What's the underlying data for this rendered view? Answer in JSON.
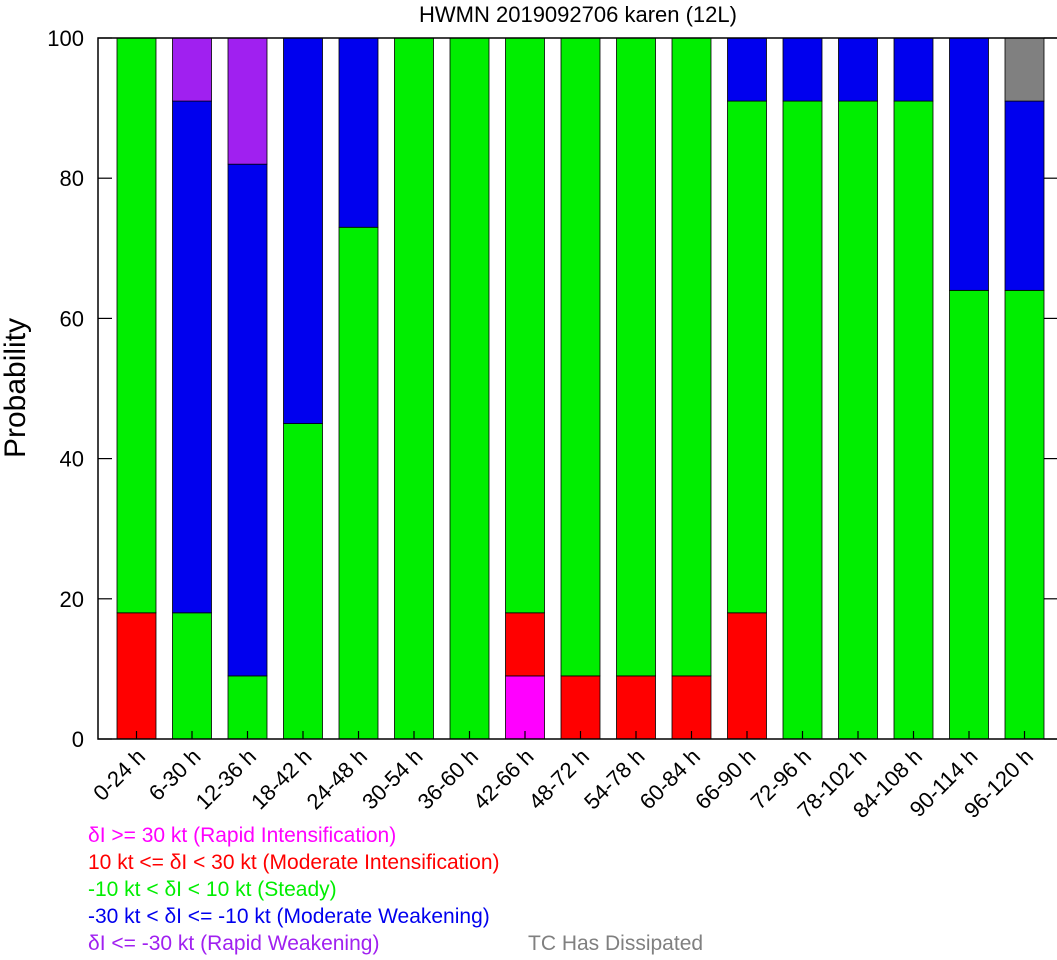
{
  "chart_data": {
    "type": "bar",
    "stacked": true,
    "title": "HWMN 2019092706 karen (12L)",
    "xlabel": "",
    "ylabel": "Probability",
    "ylim": [
      0,
      100
    ],
    "yticks": [
      "0",
      "20",
      "40",
      "60",
      "80",
      "100"
    ],
    "grid": false,
    "legend_position": "bottom-left",
    "categories": [
      "0-24 h",
      "6-30 h",
      "12-36 h",
      "18-42 h",
      "24-48 h",
      "30-54 h",
      "36-60 h",
      "42-66 h",
      "48-72 h",
      "54-78 h",
      "60-84 h",
      "66-90 h",
      "72-96 h",
      "78-102 h",
      "84-108 h",
      "90-114 h",
      "96-120 h"
    ],
    "series": [
      {
        "name": "δI >= 30 kt (Rapid Intensification)",
        "color": "#ff00ff",
        "values": [
          0,
          0,
          0,
          0,
          0,
          0,
          0,
          9,
          0,
          0,
          0,
          0,
          0,
          0,
          0,
          0,
          0
        ]
      },
      {
        "name": "10 kt <= δI < 30 kt (Moderate Intensification)",
        "color": "#ff0000",
        "values": [
          18,
          0,
          0,
          0,
          0,
          0,
          0,
          9,
          9,
          9,
          9,
          18,
          0,
          0,
          0,
          0,
          0
        ]
      },
      {
        "name": "-10 kt < δI < 10 kt (Steady)",
        "color": "#00ee00",
        "values": [
          82,
          18,
          9,
          45,
          73,
          100,
          100,
          82,
          91,
          91,
          91,
          73,
          91,
          91,
          91,
          64,
          64
        ]
      },
      {
        "name": "-30 kt < δI <= -10 kt (Moderate Weakening)",
        "color": "#0000ee",
        "values": [
          0,
          73,
          73,
          55,
          27,
          0,
          0,
          0,
          0,
          0,
          0,
          9,
          9,
          9,
          9,
          36,
          27
        ]
      },
      {
        "name": "δI <= -30 kt (Rapid Weakening)",
        "color": "#a020f0",
        "values": [
          0,
          9,
          18,
          0,
          0,
          0,
          0,
          0,
          0,
          0,
          0,
          0,
          0,
          0,
          0,
          0,
          0
        ]
      },
      {
        "name": "TC Has Dissipated",
        "color": "#808080",
        "values": [
          0,
          0,
          0,
          0,
          0,
          0,
          0,
          0,
          0,
          0,
          0,
          0,
          0,
          0,
          0,
          0,
          9
        ]
      }
    ]
  }
}
